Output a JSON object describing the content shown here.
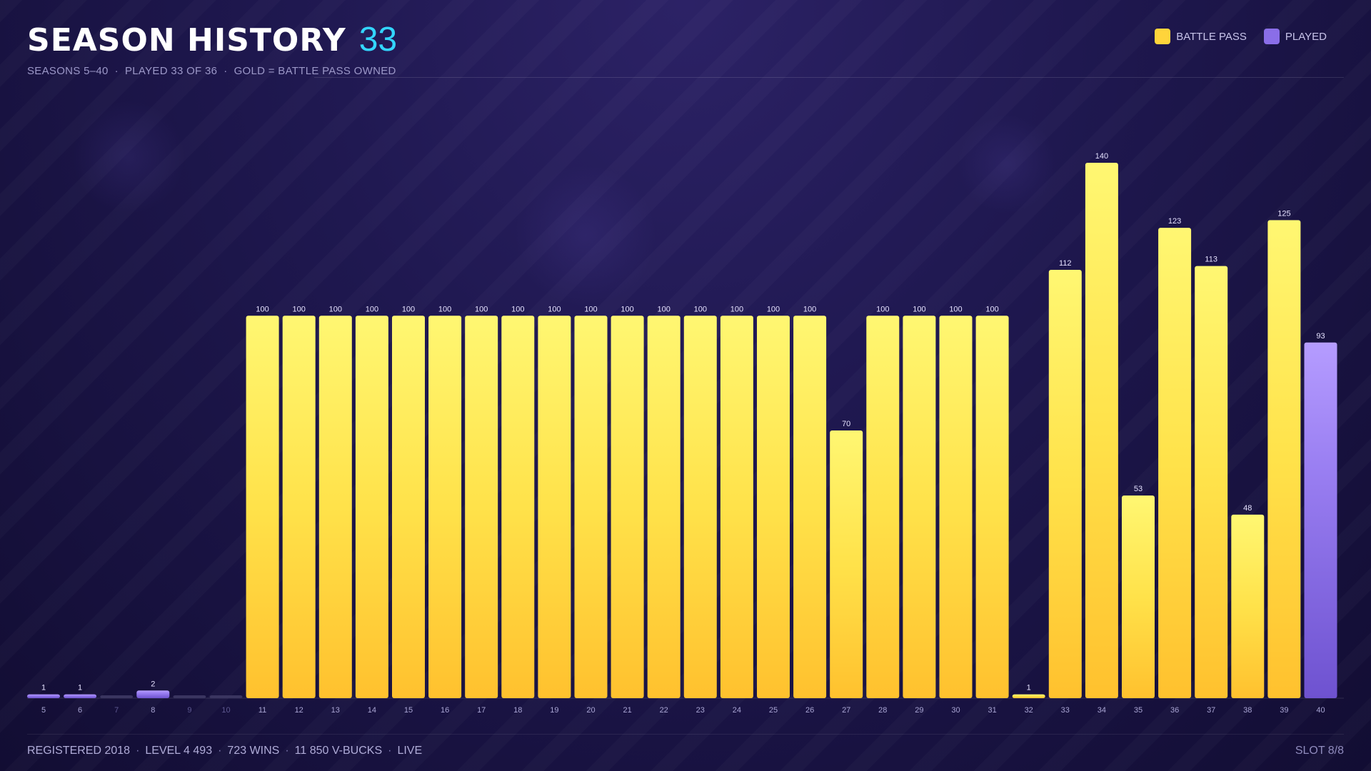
{
  "header": {
    "title": "SEASON HISTORY",
    "count": "33",
    "subtitle": [
      "SEASONS 5–40",
      "PLAYED 33 OF 36",
      "GOLD = BATTLE PASS OWNED"
    ]
  },
  "legend": [
    {
      "label": "BATTLE PASS",
      "color": "#ffd43b"
    },
    {
      "label": "PLAYED",
      "color": "#8a6ee8"
    }
  ],
  "chart_data": {
    "type": "bar",
    "categories": [
      "5",
      "6",
      "7",
      "8",
      "9",
      "10",
      "11",
      "12",
      "13",
      "14",
      "15",
      "16",
      "17",
      "18",
      "19",
      "20",
      "21",
      "22",
      "23",
      "24",
      "25",
      "26",
      "27",
      "28",
      "29",
      "30",
      "31",
      "32",
      "33",
      "34",
      "35",
      "36",
      "37",
      "38",
      "39",
      "40"
    ],
    "values": [
      1,
      1,
      0,
      2,
      0,
      0,
      100,
      100,
      100,
      100,
      100,
      100,
      100,
      100,
      100,
      100,
      100,
      100,
      100,
      100,
      100,
      100,
      70,
      100,
      100,
      100,
      100,
      1,
      112,
      140,
      53,
      123,
      113,
      48,
      125,
      93
    ],
    "value_labels": [
      "1",
      "1",
      "",
      "2",
      "",
      "",
      "100",
      "100",
      "100",
      "100",
      "100",
      "100",
      "100",
      "100",
      "100",
      "100",
      "100",
      "100",
      "100",
      "100",
      "100",
      "100",
      "70",
      "100",
      "100",
      "100",
      "100",
      "1",
      "112",
      "140",
      "53",
      "123",
      "113",
      "48",
      "125",
      "93"
    ],
    "battle_pass": [
      false,
      false,
      false,
      false,
      false,
      false,
      true,
      true,
      true,
      true,
      true,
      true,
      true,
      true,
      true,
      true,
      true,
      true,
      true,
      true,
      true,
      true,
      true,
      true,
      true,
      true,
      true,
      true,
      true,
      true,
      true,
      true,
      true,
      true,
      true,
      false
    ],
    "played": [
      true,
      true,
      false,
      true,
      false,
      false,
      true,
      true,
      true,
      true,
      true,
      true,
      true,
      true,
      true,
      true,
      true,
      true,
      true,
      true,
      true,
      true,
      true,
      true,
      true,
      true,
      true,
      true,
      true,
      true,
      true,
      true,
      true,
      true,
      true,
      true
    ],
    "ylim": [
      0,
      140
    ],
    "colors": {
      "battle_pass": "#ffd43b",
      "played": "#8a6ee8",
      "unplayed": "#3a3560"
    },
    "grid": false
  },
  "footer": {
    "items": [
      "REGISTERED 2018",
      "LEVEL 4 493",
      "723 WINS",
      "11 850 V-BUCKS",
      "LIVE"
    ],
    "slot": "SLOT 8/8"
  }
}
